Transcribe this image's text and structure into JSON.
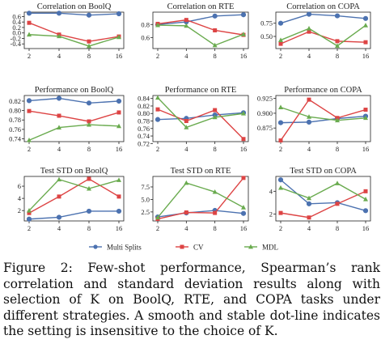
{
  "caption": "Figure 2: Few-shot performance, Spearman’s rank correlation and standard deviation results along with selection of K on BoolQ, RTE, and COPA tasks under different strategies. A smooth and stable dot-line indicates the setting is insensitive to the choice of K.",
  "colors": {
    "multi_splits": "#4c72b0",
    "cv": "#dd4444",
    "mdl": "#6aab4f"
  },
  "chart_data": [
    {
      "type": "line",
      "title": "Correlation on BoolQ",
      "x": [
        2,
        4,
        8,
        16
      ],
      "yticks": [
        -0.4,
        -0.2,
        0.0,
        0.2,
        0.4,
        0.6
      ],
      "ylim": [
        -0.57,
        0.76
      ],
      "series": [
        {
          "name": "Multi Splits",
          "values": [
            0.72,
            0.72,
            0.65,
            0.7
          ]
        },
        {
          "name": "CV",
          "values": [
            0.37,
            -0.06,
            -0.31,
            -0.13
          ]
        },
        {
          "name": "MDL",
          "values": [
            -0.06,
            -0.12,
            -0.48,
            -0.15
          ]
        }
      ]
    },
    {
      "type": "line",
      "title": "Correlation on RTE",
      "x": [
        2,
        4,
        8,
        16
      ],
      "yticks": [
        0.6,
        0.8
      ],
      "ylim": [
        0.43,
        0.99
      ],
      "series": [
        {
          "name": "Multi Splits",
          "values": [
            0.8,
            0.84,
            0.93,
            0.95
          ]
        },
        {
          "name": "CV",
          "values": [
            0.81,
            0.87,
            0.71,
            0.64
          ]
        },
        {
          "name": "MDL",
          "values": [
            0.79,
            0.78,
            0.48,
            0.65
          ]
        }
      ]
    },
    {
      "type": "line",
      "title": "Correlation on COPA",
      "x": [
        2,
        4,
        8,
        16
      ],
      "yticks": [
        0.5,
        0.75
      ],
      "ylim": [
        0.27,
        0.96
      ],
      "series": [
        {
          "name": "Multi Splits",
          "values": [
            0.75,
            0.92,
            0.89,
            0.84
          ]
        },
        {
          "name": "CV",
          "values": [
            0.36,
            0.59,
            0.41,
            0.39
          ]
        },
        {
          "name": "MDL",
          "values": [
            0.43,
            0.65,
            0.32,
            0.71
          ]
        }
      ]
    },
    {
      "type": "line",
      "title": "Performance on BoolQ",
      "x": [
        2,
        4,
        8,
        16
      ],
      "yticks": [
        0.74,
        0.76,
        0.78,
        0.8,
        0.82
      ],
      "ylim": [
        0.734,
        0.832
      ],
      "series": [
        {
          "name": "Multi Splits",
          "values": [
            0.821,
            0.826,
            0.816,
            0.82
          ]
        },
        {
          "name": "CV",
          "values": [
            0.799,
            0.789,
            0.777,
            0.796
          ]
        },
        {
          "name": "MDL",
          "values": [
            0.737,
            0.764,
            0.77,
            0.767
          ]
        }
      ]
    },
    {
      "type": "line",
      "title": "Performance on RTE",
      "x": [
        2,
        4,
        8,
        16
      ],
      "yticks": [
        0.72,
        0.74,
        0.76,
        0.78,
        0.8,
        0.82,
        0.84
      ],
      "ylim": [
        0.725,
        0.848
      ],
      "series": [
        {
          "name": "Multi Splits",
          "values": [
            0.784,
            0.787,
            0.796,
            0.802
          ]
        },
        {
          "name": "CV",
          "values": [
            0.811,
            0.78,
            0.809,
            0.732
          ]
        },
        {
          "name": "MDL",
          "values": [
            0.842,
            0.763,
            0.79,
            0.8
          ]
        }
      ]
    },
    {
      "type": "line",
      "title": "Performance on COPA",
      "x": [
        2,
        4,
        8,
        16
      ],
      "yticks": [
        0.875,
        0.9,
        0.925
      ],
      "ylim": [
        0.852,
        0.93
      ],
      "series": [
        {
          "name": "Multi Splits",
          "values": [
            0.884,
            0.885,
            0.891,
            0.895
          ]
        },
        {
          "name": "CV",
          "values": [
            0.854,
            0.923,
            0.892,
            0.906
          ]
        },
        {
          "name": "MDL",
          "values": [
            0.91,
            0.894,
            0.888,
            0.892
          ]
        }
      ]
    },
    {
      "type": "line",
      "title": "Test STD on BoolQ",
      "x": [
        2,
        4,
        8,
        16
      ],
      "yticks": [
        2,
        4,
        6
      ],
      "ylim": [
        0.3,
        7.6
      ],
      "series": [
        {
          "name": "Multi Splits",
          "values": [
            0.6,
            0.9,
            1.9,
            1.9
          ]
        },
        {
          "name": "CV",
          "values": [
            1.6,
            4.3,
            7.2,
            4.3
          ]
        },
        {
          "name": "MDL",
          "values": [
            2.0,
            7.1,
            5.6,
            7.0
          ]
        }
      ]
    },
    {
      "type": "line",
      "title": "Test STD on RTE",
      "x": [
        2,
        4,
        8,
        16
      ],
      "yticks": [
        2.5,
        5.0,
        7.5
      ],
      "ylim": [
        0.7,
        9.6
      ],
      "series": [
        {
          "name": "Multi Splits",
          "values": [
            1.5,
            2.3,
            2.8,
            2.2
          ]
        },
        {
          "name": "CV",
          "values": [
            1.1,
            2.4,
            2.3,
            9.3
          ]
        },
        {
          "name": "MDL",
          "values": [
            1.4,
            8.3,
            6.5,
            3.4
          ]
        }
      ]
    },
    {
      "type": "line",
      "title": "Test STD on COPA",
      "x": [
        2,
        4,
        8,
        16
      ],
      "yticks": [
        2,
        4
      ],
      "ylim": [
        1.4,
        5.3
      ],
      "series": [
        {
          "name": "Multi Splits",
          "values": [
            5.0,
            2.9,
            3.0,
            2.3
          ]
        },
        {
          "name": "CV",
          "values": [
            2.1,
            1.7,
            2.9,
            4.0
          ]
        },
        {
          "name": "MDL",
          "values": [
            4.3,
            3.4,
            4.7,
            3.3
          ]
        }
      ]
    }
  ],
  "legend": {
    "placement": "bottom",
    "items": [
      "Multi Splits",
      "CV",
      "MDL"
    ]
  }
}
